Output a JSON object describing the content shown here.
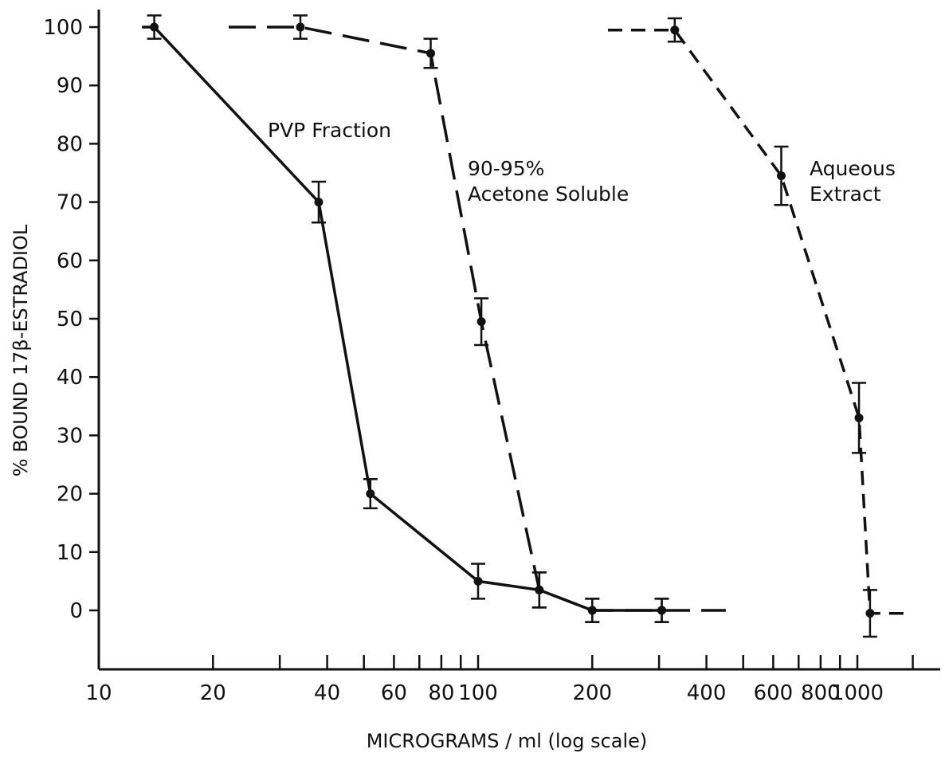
{
  "chart_data": {
    "type": "line",
    "title": "",
    "xlabel": "MICROGRAMS / ml (log scale)",
    "ylabel": "% BOUND 17β-ESTRADIOL",
    "xscale": "log",
    "xlim": [
      10,
      1400
    ],
    "ylim": [
      -10,
      100
    ],
    "x_ticks": [
      10,
      20,
      30,
      40,
      50,
      60,
      70,
      80,
      90,
      100,
      200,
      300,
      400,
      500,
      600,
      700,
      800,
      900,
      1000,
      1400
    ],
    "x_tick_labels": [
      {
        "value": 10,
        "label": "10"
      },
      {
        "value": 20,
        "label": "20"
      },
      {
        "value": 40,
        "label": "40"
      },
      {
        "value": 60,
        "label": "60"
      },
      {
        "value": 80,
        "label": "80"
      },
      {
        "value": 100,
        "label": "100"
      },
      {
        "value": 200,
        "label": "200"
      },
      {
        "value": 400,
        "label": "400"
      },
      {
        "value": 600,
        "label": "600"
      },
      {
        "value": 800,
        "label": "800"
      },
      {
        "value": 1000,
        "label": "1000"
      }
    ],
    "y_ticks": [
      100,
      90,
      80,
      70,
      60,
      50,
      40,
      30,
      20,
      10,
      0
    ],
    "y_tick_labels": [
      "100",
      "90",
      "80",
      "70",
      "60",
      "50",
      "40",
      "30",
      "20",
      "10",
      "0"
    ],
    "grid": false,
    "series": [
      {
        "name": "PVP Fraction",
        "style": "solid",
        "x": [
          14,
          38,
          52,
          100,
          145,
          200,
          305
        ],
        "y": [
          100,
          70,
          20,
          5,
          3.5,
          0,
          0
        ],
        "err": [
          2,
          3.5,
          2.5,
          3,
          3,
          2,
          2
        ],
        "line_start_x": 13
      },
      {
        "name": "90-95% Acetone Soluble",
        "style": "long-dash",
        "x": [
          34,
          75,
          102,
          145,
          200,
          305
        ],
        "y": [
          100,
          95.5,
          49.5,
          3.5,
          0,
          0
        ],
        "err": [
          2,
          2.5,
          4,
          3,
          2,
          2
        ],
        "line_start_x": 22,
        "line_end_x": 450
      },
      {
        "name": "Aqueous Extract",
        "style": "short-dash",
        "x": [
          330,
          630,
          1010,
          1080
        ],
        "y": [
          99.5,
          74.5,
          33,
          -0.5
        ],
        "err": [
          2,
          5,
          6,
          4
        ],
        "line_start_x": 220,
        "line_end_x": 1380
      }
    ],
    "annotations": [
      {
        "text": "PVP Fraction"
      },
      {
        "text": "90-95%"
      },
      {
        "text": "Acetone Soluble"
      },
      {
        "text": "Aqueous"
      },
      {
        "text": "Extract"
      }
    ]
  }
}
